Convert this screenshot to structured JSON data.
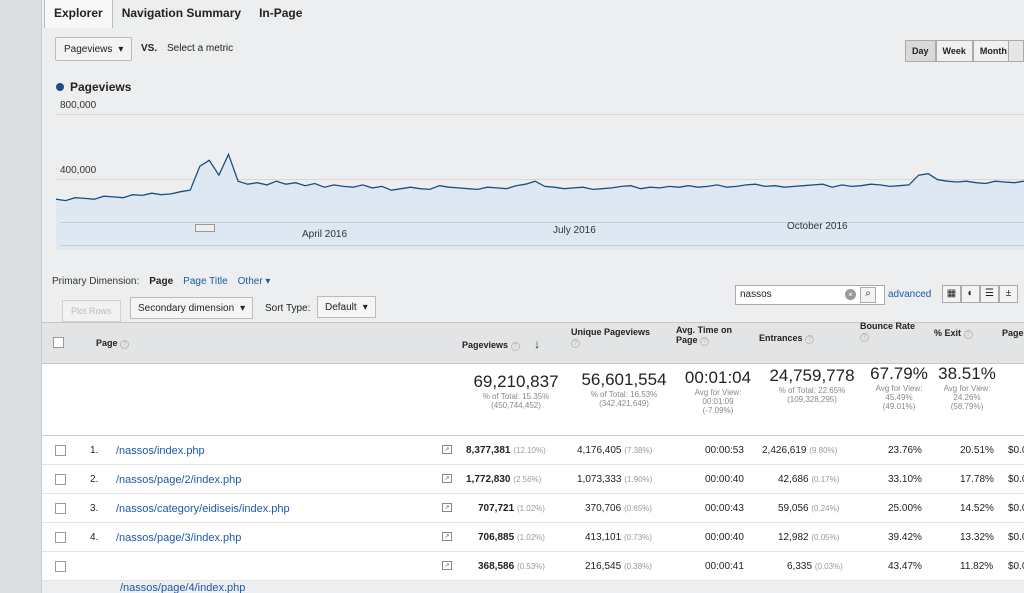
{
  "tabs": [
    {
      "label": "Explorer",
      "active": true
    },
    {
      "label": "Navigation Summary",
      "active": false
    },
    {
      "label": "In-Page",
      "active": false
    }
  ],
  "metric": {
    "selected": "Pageviews",
    "vs": "VS.",
    "select_metric": "Select a metric"
  },
  "period": {
    "day": "Day",
    "week": "Week",
    "month": "Month",
    "active": "Day"
  },
  "chart": {
    "legend": "Pageviews",
    "y_ticks": [
      "800,000",
      "400,000"
    ],
    "x_ticks": [
      "April 2016",
      "July 2016",
      "October 2016"
    ]
  },
  "chart_data": {
    "type": "line",
    "series": [
      {
        "name": "Pageviews",
        "color": "#1b4f80"
      }
    ],
    "x_range": [
      "2016-01",
      "2017-01"
    ],
    "ylim": [
      0,
      800000
    ],
    "x_tick_labels": [
      "April 2016",
      "July 2016",
      "October 2016"
    ],
    "y_tick_labels": [
      "800,000",
      "400,000"
    ],
    "values": [
      300000,
      290000,
      310000,
      305000,
      300000,
      320000,
      315000,
      310000,
      330000,
      325000,
      340000,
      330000,
      335000,
      350000,
      360000,
      520000,
      560000,
      460000,
      600000,
      420000,
      400000,
      410000,
      395000,
      420000,
      400000,
      410000,
      390000,
      405000,
      380000,
      395000,
      385000,
      380000,
      395000,
      375000,
      385000,
      360000,
      370000,
      380000,
      370000,
      365000,
      390000,
      380000,
      375000,
      370000,
      365000,
      380000,
      375000,
      370000,
      390000,
      400000,
      420000,
      385000,
      380000,
      370000,
      375000,
      380000,
      365000,
      370000,
      375000,
      385000,
      390000,
      370000,
      380000,
      375000,
      385000,
      380000,
      390000,
      380000,
      385000,
      395000,
      380000,
      385000,
      395000,
      400000,
      385000,
      390000,
      380000,
      385000,
      390000,
      395000,
      400000,
      380000,
      395000,
      385000,
      390000,
      400000,
      395000,
      385000,
      390000,
      395000,
      460000,
      470000,
      430000,
      420000,
      415000,
      420000,
      410000,
      405000,
      420000,
      415000,
      410000,
      420000
    ],
    "grid": true
  },
  "primary_dimension": {
    "label": "Primary Dimension:",
    "page": "Page",
    "page_title": "Page Title",
    "other": "Other"
  },
  "toolbar": {
    "plot_rows": "Plot Rows",
    "secondary_dimension": "Secondary dimension",
    "sort_type_label": "Sort Type:",
    "sort_type_value": "Default",
    "search_value": "nassos",
    "advanced": "advanced"
  },
  "columns": {
    "page": "Page",
    "pageviews": "Pageviews",
    "unique_pageviews": "Unique Pageviews",
    "avg_time_1": "Avg. Time on",
    "avg_time_2": "Page",
    "entrances": "Entrances",
    "bounce_rate": "Bounce Rate",
    "exit": "% Exit",
    "page_value": "Page"
  },
  "totals": {
    "pageviews": "69,210,837",
    "pageviews_sub1": "% of Total: 15.35%",
    "pageviews_sub2": "(450,744,452)",
    "unique": "56,601,554",
    "unique_sub1": "% of Total: 16.53%",
    "unique_sub2": "(342,421,649)",
    "avg_time": "00:01:04",
    "avg_time_sub1": "Avg for View:",
    "avg_time_sub2": "00:01:09",
    "avg_time_sub3": "(-7.09%)",
    "entrances": "24,759,778",
    "entrances_sub1": "% of Total: 22.65%",
    "entrances_sub2": "(109,328,295)",
    "bounce": "67.79%",
    "bounce_sub1": "Avg for View:",
    "bounce_sub2": "45.49%",
    "bounce_sub3": "(49.01%)",
    "exit": "38.51%",
    "exit_sub1": "Avg for View:",
    "exit_sub2": "24.26%",
    "exit_sub3": "(58.79%)"
  },
  "rows": [
    {
      "num": "1.",
      "page": "/nassos/index.php",
      "pageviews": "8,377,381",
      "pv_pct": "(12.10%)",
      "unique": "4,176,405",
      "u_pct": "(7.38%)",
      "avg_time": "00:00:53",
      "entrances": "2,426,619",
      "e_pct": "(9.80%)",
      "bounce": "23.76%",
      "exit": "20.51%",
      "value": "$0.0"
    },
    {
      "num": "2.",
      "page": "/nassos/page/2/index.php",
      "pageviews": "1,772,830",
      "pv_pct": "(2.56%)",
      "unique": "1,073,333",
      "u_pct": "(1.90%)",
      "avg_time": "00:00:40",
      "entrances": "42,686",
      "e_pct": "(0.17%)",
      "bounce": "33.10%",
      "exit": "17.78%",
      "value": "$0.0"
    },
    {
      "num": "3.",
      "page": "/nassos/category/eidiseis/index.php",
      "pageviews": "707,721",
      "pv_pct": "(1.02%)",
      "unique": "370,706",
      "u_pct": "(0.65%)",
      "avg_time": "00:00:43",
      "entrances": "59,056",
      "e_pct": "(0.24%)",
      "bounce": "25.00%",
      "exit": "14.52%",
      "value": "$0.0"
    },
    {
      "num": "4.",
      "page": "/nassos/page/3/index.php",
      "pageviews": "706,885",
      "pv_pct": "(1.02%)",
      "unique": "413,101",
      "u_pct": "(0.73%)",
      "avg_time": "00:00:40",
      "entrances": "12,982",
      "e_pct": "(0.05%)",
      "bounce": "39.42%",
      "exit": "13.32%",
      "value": "$0.0"
    },
    {
      "num": "",
      "page": "",
      "pageviews": "368,586",
      "pv_pct": "(0.53%)",
      "unique": "216,545",
      "u_pct": "(0.38%)",
      "avg_time": "00:00:41",
      "entrances": "6,335",
      "e_pct": "(0.03%)",
      "bounce": "43.47%",
      "exit": "11.82%",
      "value": "$0.0"
    }
  ],
  "cutoff_row": "/nassos/page/4/index.php"
}
